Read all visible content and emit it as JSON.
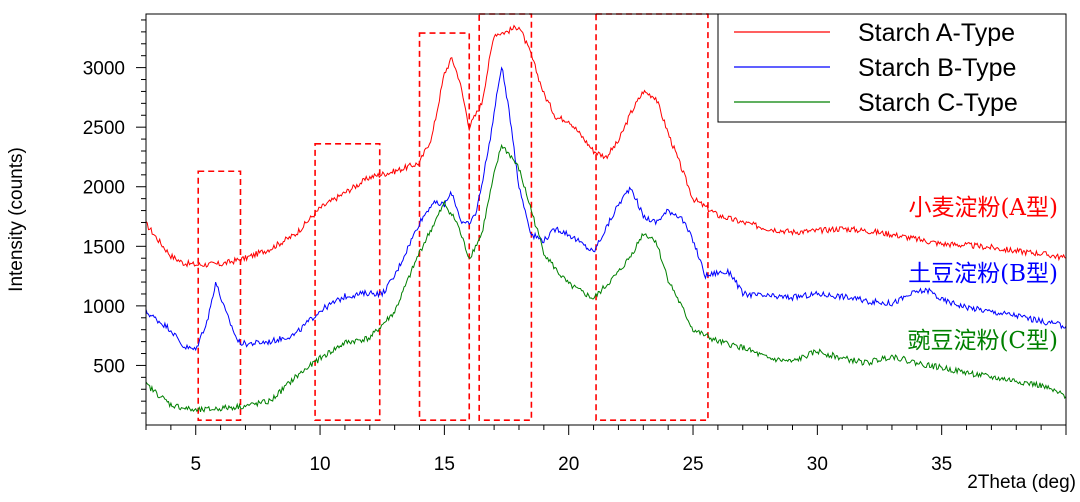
{
  "chart_data": {
    "type": "line",
    "title": "",
    "xlabel": "2Theta (deg)",
    "ylabel": "Intensity (counts)",
    "xlim": [
      3,
      40
    ],
    "ylim": [
      0,
      3450
    ],
    "x_ticks": [
      5,
      10,
      15,
      20,
      25,
      30,
      35
    ],
    "y_ticks": [
      500,
      1000,
      1500,
      2000,
      2500,
      3000
    ],
    "legend_position": "top-right",
    "grid": false,
    "series": [
      {
        "name": "Starch A-Type",
        "label": "小麦淀粉(A型)",
        "color": "#ff0000",
        "points": [
          [
            3,
            1690
          ],
          [
            3.5,
            1550
          ],
          [
            4,
            1420
          ],
          [
            4.5,
            1360
          ],
          [
            5,
            1345
          ],
          [
            6,
            1350
          ],
          [
            7,
            1400
          ],
          [
            8,
            1480
          ],
          [
            9,
            1600
          ],
          [
            10,
            1820
          ],
          [
            11,
            1950
          ],
          [
            12,
            2080
          ],
          [
            13,
            2130
          ],
          [
            14,
            2200
          ],
          [
            14.5,
            2420
          ],
          [
            15,
            2950
          ],
          [
            15.3,
            3080
          ],
          [
            15.6,
            2900
          ],
          [
            16,
            2500
          ],
          [
            16.5,
            2700
          ],
          [
            17,
            3280
          ],
          [
            17.5,
            3300
          ],
          [
            18,
            3350
          ],
          [
            18.5,
            3100
          ],
          [
            19,
            2780
          ],
          [
            19.5,
            2580
          ],
          [
            20,
            2560
          ],
          [
            21,
            2300
          ],
          [
            21.5,
            2250
          ],
          [
            22,
            2380
          ],
          [
            22.5,
            2620
          ],
          [
            23,
            2800
          ],
          [
            23.5,
            2750
          ],
          [
            24,
            2450
          ],
          [
            25,
            1900
          ],
          [
            26,
            1760
          ],
          [
            27,
            1700
          ],
          [
            28,
            1650
          ],
          [
            29,
            1620
          ],
          [
            30,
            1630
          ],
          [
            31,
            1650
          ],
          [
            32,
            1630
          ],
          [
            33,
            1600
          ],
          [
            34,
            1560
          ],
          [
            35,
            1520
          ],
          [
            36,
            1510
          ],
          [
            37,
            1490
          ],
          [
            38,
            1460
          ],
          [
            39,
            1440
          ],
          [
            40,
            1400
          ]
        ]
      },
      {
        "name": "Starch B-Type",
        "label": "土豆淀粉(B型)",
        "color": "#0000ff",
        "points": [
          [
            3,
            950
          ],
          [
            4,
            800
          ],
          [
            4.5,
            660
          ],
          [
            5,
            630
          ],
          [
            5.5,
            900
          ],
          [
            5.8,
            1200
          ],
          [
            6.2,
            950
          ],
          [
            6.7,
            700
          ],
          [
            7,
            680
          ],
          [
            8,
            700
          ],
          [
            9,
            760
          ],
          [
            10,
            960
          ],
          [
            11,
            1080
          ],
          [
            12,
            1110
          ],
          [
            12.5,
            1100
          ],
          [
            13,
            1250
          ],
          [
            14,
            1700
          ],
          [
            14.5,
            1860
          ],
          [
            15,
            1850
          ],
          [
            15.3,
            1950
          ],
          [
            15.7,
            1700
          ],
          [
            16,
            1680
          ],
          [
            16.3,
            1800
          ],
          [
            16.8,
            2350
          ],
          [
            17.3,
            3020
          ],
          [
            17.7,
            2500
          ],
          [
            18,
            2000
          ],
          [
            18.5,
            1600
          ],
          [
            19,
            1550
          ],
          [
            19.5,
            1650
          ],
          [
            20,
            1600
          ],
          [
            21,
            1450
          ],
          [
            21.5,
            1650
          ],
          [
            22,
            1850
          ],
          [
            22.5,
            2000
          ],
          [
            23,
            1750
          ],
          [
            23.5,
            1700
          ],
          [
            24,
            1800
          ],
          [
            24.5,
            1750
          ],
          [
            25,
            1550
          ],
          [
            25.5,
            1250
          ],
          [
            26,
            1280
          ],
          [
            26.5,
            1280
          ],
          [
            27,
            1100
          ],
          [
            28,
            1080
          ],
          [
            29,
            1070
          ],
          [
            30,
            1100
          ],
          [
            31,
            1080
          ],
          [
            32,
            1040
          ],
          [
            33,
            1020
          ],
          [
            34,
            1120
          ],
          [
            34.5,
            1130
          ],
          [
            35,
            1050
          ],
          [
            36,
            990
          ],
          [
            37,
            950
          ],
          [
            38,
            920
          ],
          [
            39,
            870
          ],
          [
            40,
            830
          ]
        ]
      },
      {
        "name": "Starch C-Type",
        "label": "豌豆淀粉(C型)",
        "color": "#008000",
        "points": [
          [
            3,
            340
          ],
          [
            4,
            170
          ],
          [
            5,
            120
          ],
          [
            6,
            140
          ],
          [
            7,
            160
          ],
          [
            8,
            200
          ],
          [
            9,
            400
          ],
          [
            10,
            560
          ],
          [
            11,
            690
          ],
          [
            12,
            730
          ],
          [
            13,
            950
          ],
          [
            14,
            1450
          ],
          [
            15,
            1860
          ],
          [
            15.5,
            1700
          ],
          [
            16,
            1400
          ],
          [
            16.5,
            1600
          ],
          [
            17,
            2100
          ],
          [
            17.3,
            2350
          ],
          [
            17.7,
            2250
          ],
          [
            18,
            2150
          ],
          [
            18.5,
            1800
          ],
          [
            19,
            1450
          ],
          [
            19.5,
            1300
          ],
          [
            20,
            1180
          ],
          [
            21,
            1060
          ],
          [
            22,
            1280
          ],
          [
            22.5,
            1420
          ],
          [
            23,
            1610
          ],
          [
            23.5,
            1550
          ],
          [
            24,
            1220
          ],
          [
            25,
            800
          ],
          [
            26,
            700
          ],
          [
            27,
            650
          ],
          [
            28,
            560
          ],
          [
            29,
            530
          ],
          [
            30,
            620
          ],
          [
            31,
            560
          ],
          [
            32,
            520
          ],
          [
            33,
            580
          ],
          [
            34,
            520
          ],
          [
            35,
            480
          ],
          [
            36,
            440
          ],
          [
            37,
            400
          ],
          [
            38,
            370
          ],
          [
            39,
            330
          ],
          [
            40,
            240
          ]
        ]
      }
    ],
    "highlight_regions": [
      {
        "x": [
          5.1,
          6.8
        ],
        "y": [
          40,
          2130
        ]
      },
      {
        "x": [
          9.8,
          12.4
        ],
        "y": [
          40,
          2360
        ]
      },
      {
        "x": [
          14.0,
          16.0
        ],
        "y": [
          40,
          3290
        ]
      },
      {
        "x": [
          16.4,
          18.5
        ],
        "y": [
          40,
          3480
        ]
      },
      {
        "x": [
          21.1,
          25.6
        ],
        "y": [
          40,
          3480
        ]
      }
    ]
  }
}
